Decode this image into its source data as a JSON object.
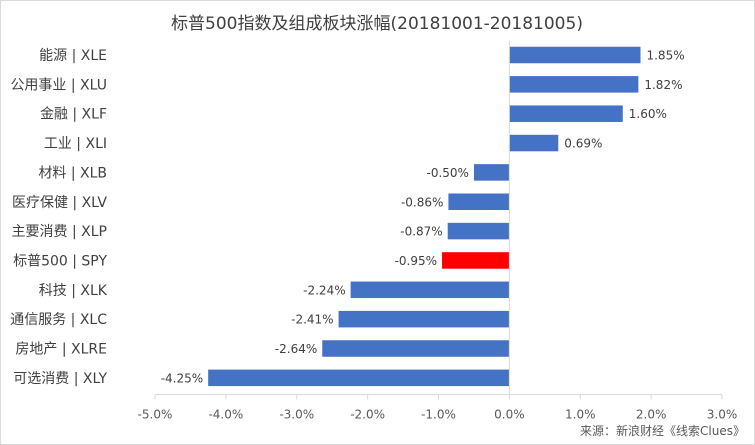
{
  "chart_data": {
    "type": "bar",
    "orientation": "horizontal",
    "title": "标普500指数及组成板块涨幅(20181001-20181005)",
    "categories": [
      "能源 | XLE",
      "公用事业 | XLU",
      "金融 | XLF",
      "工业 | XLI",
      "材料 | XLB",
      "医疗保健 | XLV",
      "主要消费 | XLP",
      "标普500 | SPY",
      "科技 | XLK",
      "通信服务 | XLC",
      "房地产 | XLRE",
      "可选消费 | XLY"
    ],
    "values": [
      1.85,
      1.82,
      1.6,
      0.69,
      -0.5,
      -0.86,
      -0.87,
      -0.95,
      -2.24,
      -2.41,
      -2.64,
      -4.25
    ],
    "data_labels": [
      "1.85%",
      "1.82%",
      "1.60%",
      "0.69%",
      "-0.50%",
      "-0.86%",
      "-0.87%",
      "-0.95%",
      "-2.24%",
      "-2.41%",
      "-2.64%",
      "-4.25%"
    ],
    "highlight_index": 7,
    "xlim": [
      -5.0,
      3.0
    ],
    "x_ticks": [
      -5.0,
      -4.0,
      -3.0,
      -2.0,
      -1.0,
      0.0,
      1.0,
      2.0,
      3.0
    ],
    "x_tick_labels": [
      "-5.0%",
      "-4.0%",
      "-3.0%",
      "-2.0%",
      "-1.0%",
      "0.0%",
      "1.0%",
      "2.0%",
      "3.0%"
    ],
    "xlabel": "",
    "ylabel": "",
    "grid": false,
    "legend": false,
    "colors": {
      "bar": "#4472c4",
      "highlight": "#ff0000",
      "axis": "#d9d9d9",
      "text": "#404040"
    }
  },
  "source_note": "来源：新浪财经《线索Clues》"
}
